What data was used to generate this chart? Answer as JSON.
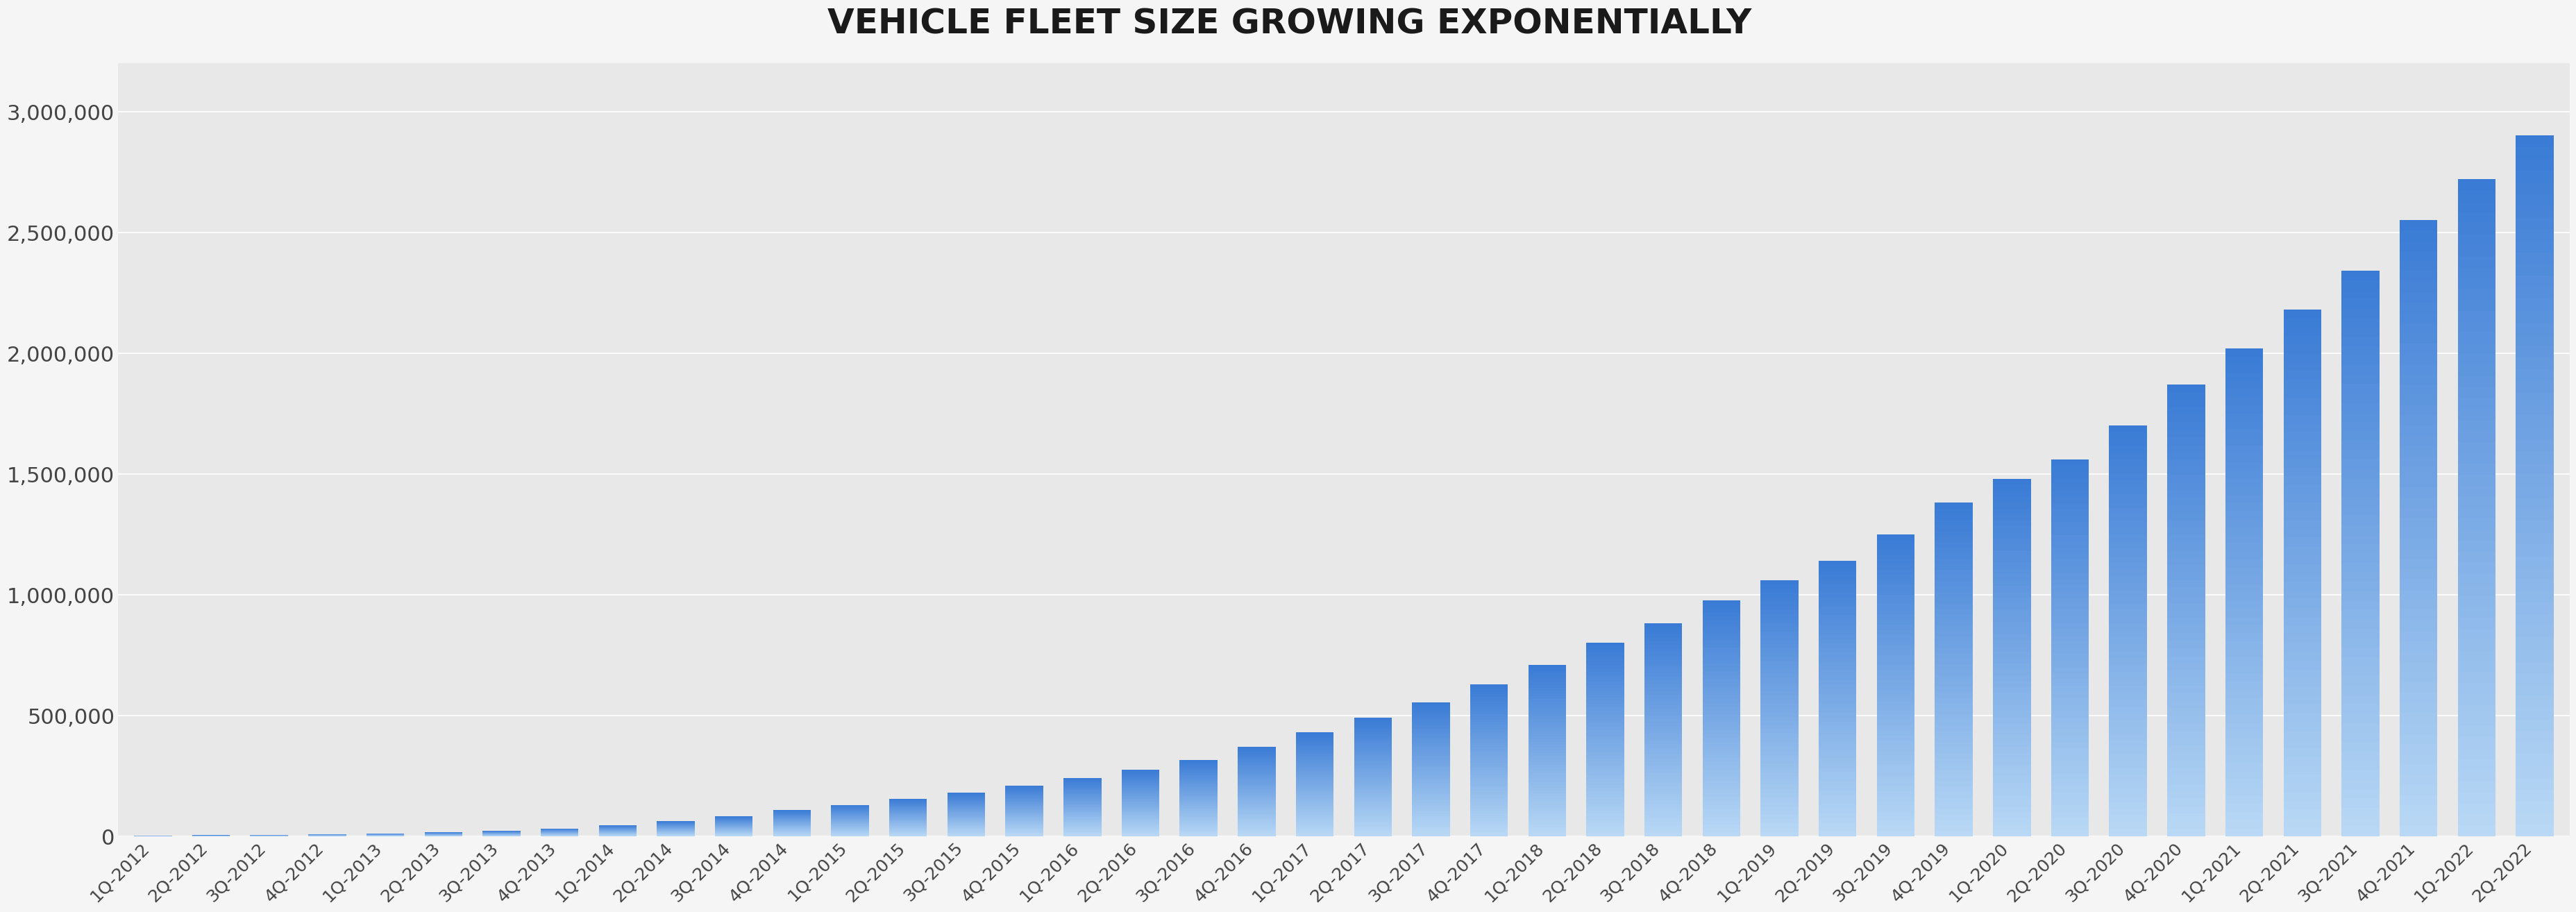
{
  "title": "VEHICLE FLEET SIZE GROWING EXPONENTIALLY",
  "title_fontsize": 36,
  "title_fontweight": "bold",
  "title_color": "#1a1a1a",
  "background_color": "#f0f0f0",
  "plot_bg_color": "#e8e8e8",
  "outer_bg_color": "#f5f5f5",
  "bar_top_color": "#3a7bd5",
  "bar_bottom_color": "#b8d8f5",
  "grid_color": "#ffffff",
  "tick_color": "#444444",
  "ylim": [
    0,
    3200000
  ],
  "yticks": [
    0,
    500000,
    1000000,
    1500000,
    2000000,
    2500000,
    3000000
  ],
  "ytick_labels": [
    "0",
    "500,000",
    "1,000,000",
    "1,500,000",
    "2,000,000",
    "2,500,000",
    "3,000,000"
  ],
  "categories": [
    "1Q-2012",
    "2Q-2012",
    "3Q-2012",
    "4Q-2012",
    "1Q-2013",
    "2Q-2013",
    "3Q-2013",
    "4Q-2013",
    "1Q-2014",
    "2Q-2014",
    "3Q-2014",
    "4Q-2014",
    "1Q-2015",
    "2Q-2015",
    "3Q-2015",
    "4Q-2015",
    "1Q-2016",
    "2Q-2016",
    "3Q-2016",
    "4Q-2016",
    "1Q-2017",
    "2Q-2017",
    "3Q-2017",
    "4Q-2017",
    "1Q-2018",
    "2Q-2018",
    "3Q-2018",
    "4Q-2018",
    "1Q-2019",
    "2Q-2019",
    "3Q-2019",
    "4Q-2019",
    "1Q-2020",
    "2Q-2020",
    "3Q-2020",
    "4Q-2020",
    "1Q-2021",
    "2Q-2021",
    "3Q-2021",
    "4Q-2021",
    "1Q-2022",
    "2Q-2022"
  ],
  "values": [
    2650,
    4500,
    6000,
    9000,
    12000,
    16000,
    22000,
    32000,
    45000,
    62000,
    82000,
    108000,
    130000,
    155000,
    180000,
    210000,
    240000,
    275000,
    315000,
    370000,
    430000,
    490000,
    555000,
    630000,
    710000,
    800000,
    880000,
    975000,
    1060000,
    1140000,
    1250000,
    1380000,
    1480000,
    1560000,
    1700000,
    1870000,
    2020000,
    2180000,
    2340000,
    2550000,
    2720000,
    2900000
  ]
}
